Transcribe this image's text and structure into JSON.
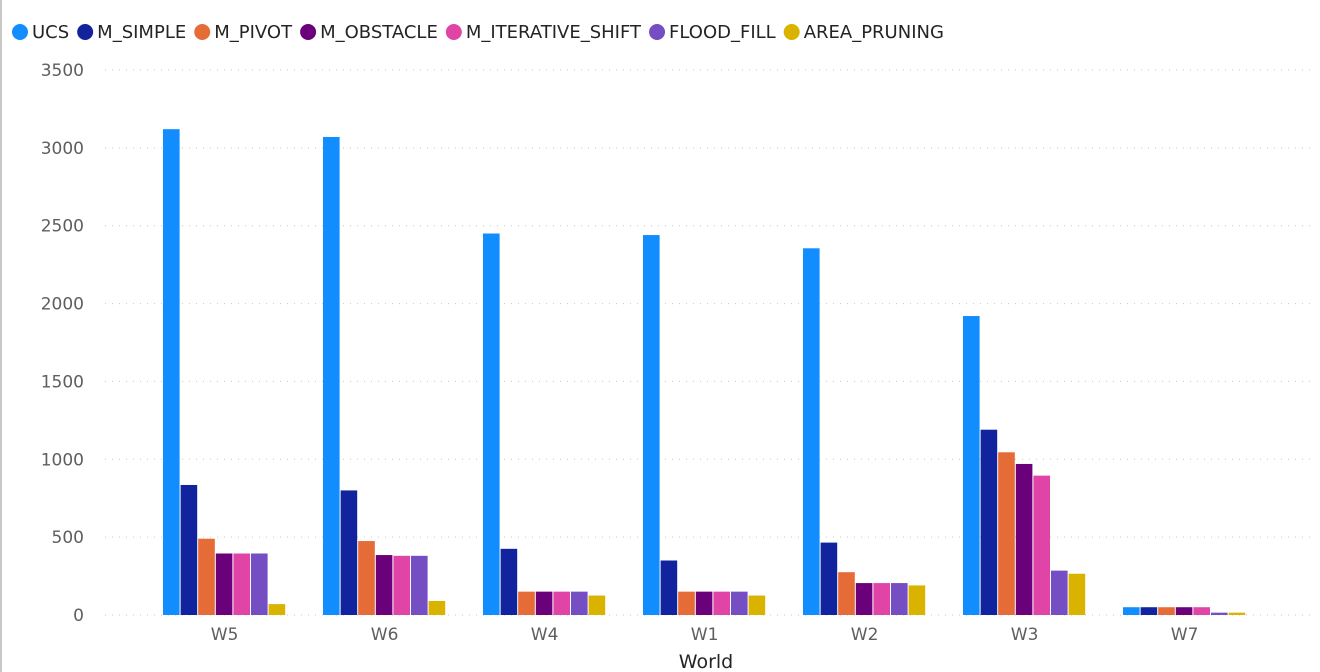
{
  "chart_data": {
    "type": "bar",
    "xlabel": "World",
    "ylabel": "",
    "ylim": [
      0,
      3500
    ],
    "yticks": [
      0,
      500,
      1000,
      1500,
      2000,
      2500,
      3000,
      3500
    ],
    "grid": true,
    "legend_position": "top-left",
    "categories": [
      "W5",
      "W6",
      "W4",
      "W1",
      "W2",
      "W3",
      "W7"
    ],
    "series": [
      {
        "name": "UCS",
        "color": "#118DFF",
        "values": [
          3120,
          3070,
          2450,
          2440,
          2355,
          1920,
          50
        ]
      },
      {
        "name": "M_SIMPLE",
        "color": "#12239E",
        "values": [
          835,
          800,
          425,
          350,
          465,
          1190,
          50
        ]
      },
      {
        "name": "M_PIVOT",
        "color": "#E66C37",
        "values": [
          490,
          475,
          150,
          150,
          275,
          1045,
          50
        ]
      },
      {
        "name": "M_OBSTACLE",
        "color": "#6B007B",
        "values": [
          395,
          385,
          150,
          150,
          205,
          970,
          50
        ]
      },
      {
        "name": "M_ITERATIVE_SHIFT",
        "color": "#E044A7",
        "values": [
          395,
          380,
          150,
          150,
          205,
          895,
          50
        ]
      },
      {
        "name": "FLOOD_FILL",
        "color": "#744EC2",
        "values": [
          395,
          380,
          150,
          150,
          205,
          285,
          15
        ]
      },
      {
        "name": "AREA_PRUNING",
        "color": "#D9B300",
        "values": [
          70,
          90,
          125,
          125,
          190,
          265,
          15
        ]
      }
    ]
  }
}
